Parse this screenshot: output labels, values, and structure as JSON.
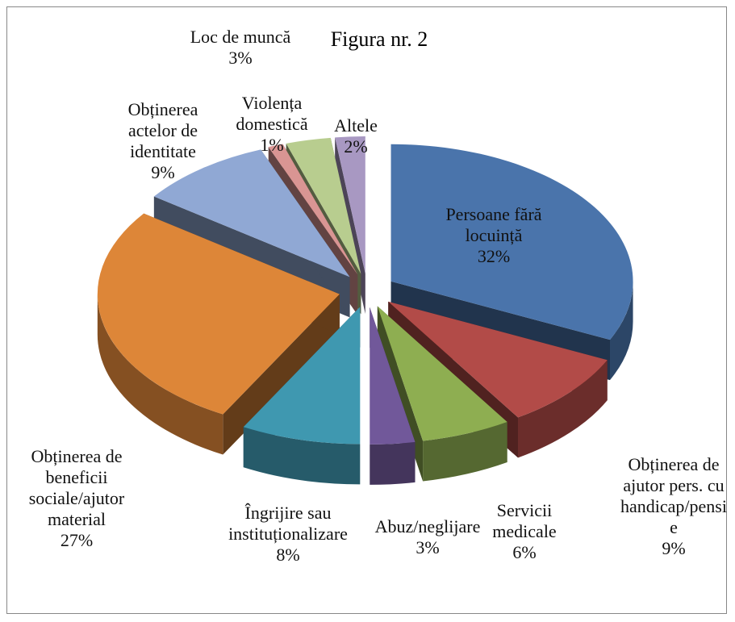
{
  "chart_data": {
    "type": "pie3d",
    "title": "Figura nr. 2",
    "categories": [
      "Persoane fără locuință",
      "Obținerea de ajutor pers. cu handicap/pensie",
      "Servicii medicale",
      "Abuz/neglijare",
      "Îngrijire sau instituționalizare",
      "Obținerea de beneficii sociale/ajutor material",
      "Obținerea actelor de identitate",
      "Violența domestică",
      "Loc de muncă",
      "Altele"
    ],
    "values": [
      32,
      9,
      6,
      3,
      8,
      27,
      9,
      1,
      3,
      2
    ],
    "value_labels": [
      "32%",
      "9%",
      "6%",
      "3%",
      "8%",
      "27%",
      "9%",
      "1%",
      "3%",
      "2%"
    ],
    "colors": [
      "#4a74ab",
      "#b24b48",
      "#8eae51",
      "#71589a",
      "#3f98b0",
      "#dd8638",
      "#90a8d4",
      "#d99593",
      "#b8cd8f",
      "#a898c2"
    ]
  }
}
